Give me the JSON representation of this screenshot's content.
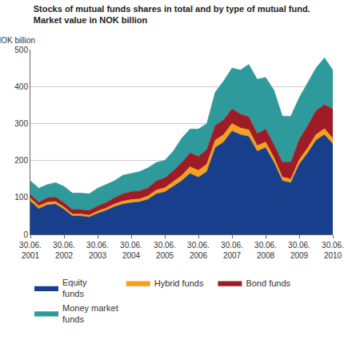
{
  "chart_data": {
    "type": "area",
    "stacked": true,
    "title": "Stocks of mutual funds shares in total and by type of mutual fund.\nMarket value in NOK billion",
    "y_label": "NOK billion",
    "categories": [
      "30.06.\n2001",
      null,
      null,
      null,
      "30.06.\n2002",
      null,
      null,
      null,
      "30.06.\n2003",
      null,
      null,
      null,
      "30.06.\n2004",
      null,
      null,
      null,
      "30.06.\n2005",
      null,
      null,
      null,
      "30.06.\n2006",
      null,
      null,
      null,
      "30.06.\n2007",
      null,
      null,
      null,
      "30.06.\n2008",
      null,
      null,
      null,
      "30.06.\n2009",
      null,
      null,
      null,
      "30.06.\n2010"
    ],
    "series": [
      {
        "name": "Equity\nfunds",
        "color": "#183f8c",
        "values": [
          90,
          70,
          80,
          82,
          68,
          50,
          50,
          47,
          57,
          65,
          75,
          82,
          86,
          88,
          95,
          110,
          115,
          130,
          145,
          165,
          155,
          170,
          235,
          250,
          280,
          270,
          265,
          225,
          235,
          195,
          145,
          140,
          190,
          220,
          255,
          270,
          245
        ]
      },
      {
        "name": "Hybrid funds",
        "color": "#f5a11c",
        "values": [
          8,
          7,
          7,
          7,
          6,
          5,
          5,
          5,
          6,
          6,
          7,
          8,
          8,
          8,
          9,
          10,
          11,
          12,
          14,
          18,
          18,
          20,
          20,
          20,
          20,
          18,
          18,
          15,
          15,
          13,
          10,
          10,
          12,
          14,
          15,
          16,
          15
        ]
      },
      {
        "name": "Bond funds",
        "color": "#9e1c26",
        "values": [
          10,
          10,
          12,
          12,
          12,
          12,
          12,
          13,
          14,
          15,
          17,
          20,
          22,
          22,
          22,
          25,
          27,
          30,
          35,
          38,
          38,
          40,
          40,
          40,
          40,
          38,
          35,
          33,
          35,
          35,
          40,
          45,
          55,
          60,
          65,
          65,
          80
        ]
      },
      {
        "name": "Money market\nfunds",
        "color": "#2e9a9c",
        "values": [
          37,
          38,
          36,
          39,
          44,
          45,
          45,
          45,
          48,
          49,
          46,
          50,
          49,
          52,
          54,
          50,
          47,
          53,
          66,
          64,
          74,
          70,
          90,
          105,
          110,
          119,
          142,
          147,
          140,
          147,
          125,
          125,
          113,
          116,
          115,
          127,
          105
        ]
      }
    ],
    "ylim": [
      0,
      500
    ],
    "yticks": [
      0,
      100,
      200,
      300,
      400,
      500
    ],
    "grid": true,
    "legend": "bottom"
  }
}
